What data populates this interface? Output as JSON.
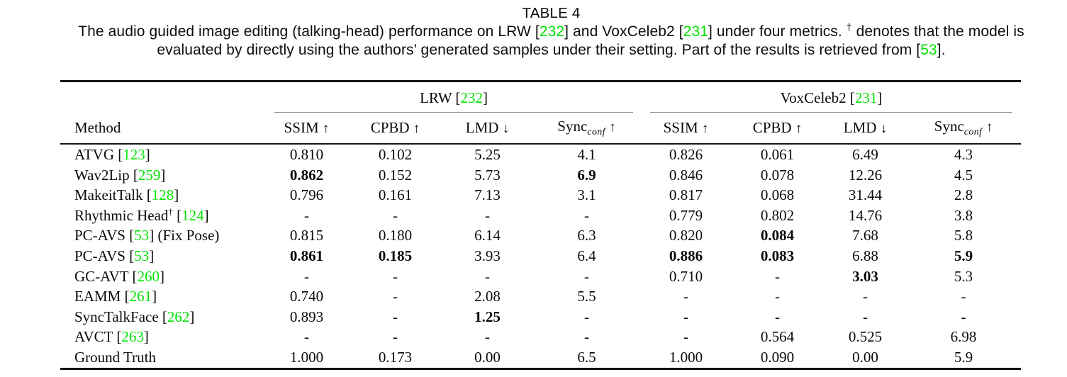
{
  "page": {
    "title": "TABLE 4",
    "caption_line1": [
      {
        "t": "The audio guided image editing (talking-head) performance on LRW ["
      },
      {
        "t": "232",
        "cite": true
      },
      {
        "t": "] and VoxCeleb2 ["
      },
      {
        "t": "231",
        "cite": true
      },
      {
        "t": "] under four metrics. "
      },
      {
        "t": "†",
        "sup": true
      },
      {
        "t": " denotes that the model is"
      }
    ],
    "caption_line2": [
      {
        "t": "evaluated by directly using the authors’ generated samples under their setting. Part of the results is retrieved from ["
      },
      {
        "t": "53",
        "cite": true
      },
      {
        "t": "]."
      }
    ]
  },
  "colors": {
    "citation_green": "#00e400"
  },
  "chart_data": {
    "type": "table",
    "title": "TABLE 4",
    "column_groups": [
      "LRW [232]",
      "VoxCeleb2 [231]"
    ],
    "columns": [
      "Method",
      "SSIM ↑",
      "CPBD ↑",
      "LMD ↓",
      "Sync_conf ↑",
      "SSIM ↑",
      "CPBD ↑",
      "LMD ↓",
      "Sync_conf ↑"
    ]
  },
  "table": {
    "method_header": "Method",
    "group_headers": [
      {
        "pre": "LRW [",
        "cite": "232",
        "post": "]"
      },
      {
        "pre": "VoxCeleb2 [",
        "cite": "231",
        "post": "]"
      }
    ],
    "metric_headers": [
      {
        "name": "SSIM",
        "sub": "",
        "arrow": "↑"
      },
      {
        "name": "CPBD",
        "sub": "",
        "arrow": "↑"
      },
      {
        "name": "LMD",
        "sub": "",
        "arrow": "↓"
      },
      {
        "name": "Sync",
        "sub": "conf",
        "arrow": "↑"
      },
      {
        "name": "SSIM",
        "sub": "",
        "arrow": "↑"
      },
      {
        "name": "CPBD",
        "sub": "",
        "arrow": "↑"
      },
      {
        "name": "LMD",
        "sub": "",
        "arrow": "↓"
      },
      {
        "name": "Sync",
        "sub": "conf",
        "arrow": "↑"
      }
    ],
    "rows": [
      {
        "method": "ATVG",
        "sup": "",
        "cite": "123",
        "suffix": "",
        "cells": [
          "0.810",
          "0.102",
          "5.25",
          "4.1",
          "0.826",
          "0.061",
          "6.49",
          "4.3"
        ],
        "bold": []
      },
      {
        "method": "Wav2Lip",
        "sup": "",
        "cite": "259",
        "suffix": "",
        "cells": [
          "0.862",
          "0.152",
          "5.73",
          "6.9",
          "0.846",
          "0.078",
          "12.26",
          "4.5"
        ],
        "bold": [
          0,
          3
        ]
      },
      {
        "method": "MakeitTalk",
        "sup": "",
        "cite": "128",
        "suffix": "",
        "cells": [
          "0.796",
          "0.161",
          "7.13",
          "3.1",
          "0.817",
          "0.068",
          "31.44",
          "2.8"
        ],
        "bold": []
      },
      {
        "method": "Rhythmic Head",
        "sup": "†",
        "cite": "124",
        "suffix": "",
        "cells": [
          "-",
          "-",
          "-",
          "-",
          "0.779",
          "0.802",
          "14.76",
          "3.8"
        ],
        "bold": []
      },
      {
        "method": "PC-AVS",
        "sup": "",
        "cite": "53",
        "suffix": " (Fix Pose)",
        "cells": [
          "0.815",
          "0.180",
          "6.14",
          "6.3",
          "0.820",
          "0.084",
          "7.68",
          "5.8"
        ],
        "bold": [
          5
        ]
      },
      {
        "method": "PC-AVS",
        "sup": "",
        "cite": "53",
        "suffix": "",
        "cells": [
          "0.861",
          "0.185",
          "3.93",
          "6.4",
          "0.886",
          "0.083",
          "6.88",
          "5.9"
        ],
        "bold": [
          0,
          1,
          4,
          5,
          7
        ]
      },
      {
        "method": "GC-AVT",
        "sup": "",
        "cite": "260",
        "suffix": "",
        "cells": [
          "-",
          "-",
          "-",
          "-",
          "0.710",
          "-",
          "3.03",
          "5.3"
        ],
        "bold": [
          6
        ]
      },
      {
        "method": "EAMM",
        "sup": "",
        "cite": "261",
        "suffix": "",
        "cells": [
          "0.740",
          "-",
          "2.08",
          "5.5",
          "-",
          "-",
          "-",
          "-"
        ],
        "bold": []
      },
      {
        "method": "SyncTalkFace",
        "sup": "",
        "cite": "262",
        "suffix": "",
        "cells": [
          "0.893",
          "-",
          "1.25",
          "-",
          "-",
          "-",
          "-",
          "-"
        ],
        "bold": [
          2
        ]
      },
      {
        "method": "AVCT",
        "sup": "",
        "cite": "263",
        "suffix": "",
        "cells": [
          "-",
          "-",
          "-",
          "-",
          "-",
          "0.564",
          "0.525",
          "6.98"
        ],
        "bold": []
      },
      {
        "method": "Ground Truth",
        "sup": "",
        "cite": "",
        "suffix": "",
        "cells": [
          "1.000",
          "0.173",
          "0.00",
          "6.5",
          "1.000",
          "0.090",
          "0.00",
          "5.9"
        ],
        "bold": []
      }
    ]
  }
}
